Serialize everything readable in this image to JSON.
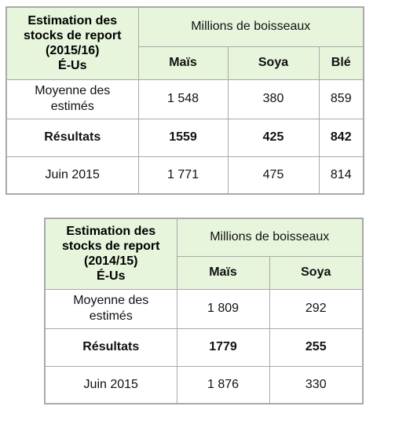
{
  "table1": {
    "title": [
      "Estimation des",
      "stocks de report",
      "(2015/16)",
      "É-Us"
    ],
    "units": "Millions de boisseaux",
    "columns": [
      "Maïs",
      "Soya",
      "Blé"
    ],
    "rows": [
      {
        "label": [
          "Moyenne des",
          "estimés"
        ],
        "values": [
          "1 548",
          "380",
          "859"
        ]
      },
      {
        "label": [
          "Résultats"
        ],
        "values": [
          "1559",
          "425",
          "842"
        ]
      },
      {
        "label": [
          "Juin 2015"
        ],
        "values": [
          "1 771",
          "475",
          "814"
        ]
      }
    ]
  },
  "table2": {
    "title": [
      "Estimation des",
      "stocks de report",
      "(2014/15)",
      "É-Us"
    ],
    "units": "Millions de boisseaux",
    "columns": [
      "Maïs",
      "Soya"
    ],
    "rows": [
      {
        "label": [
          "Moyenne des",
          "estimés"
        ],
        "values": [
          "1 809",
          "292"
        ]
      },
      {
        "label": [
          "Résultats"
        ],
        "values": [
          "1779",
          "255"
        ]
      },
      {
        "label": [
          "Juin 2015"
        ],
        "values": [
          "1 876",
          "330"
        ]
      }
    ]
  }
}
